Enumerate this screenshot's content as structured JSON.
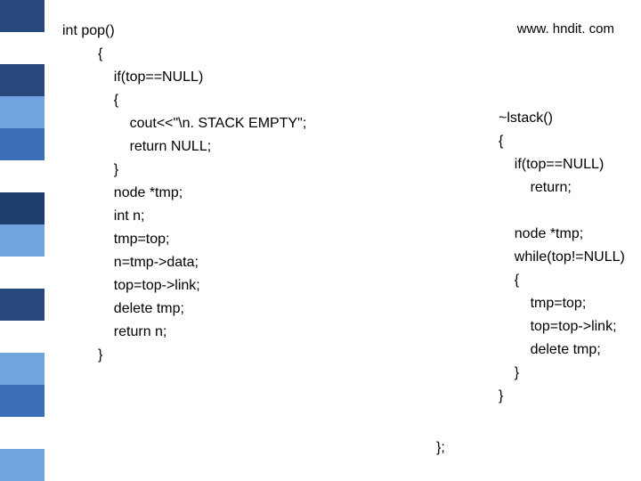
{
  "url": "www. hndit. com",
  "sidebar": {
    "colors": [
      "#28477a",
      "#ffffff",
      "#28477a",
      "#6fa4e0",
      "#3a6fb8",
      "#ffffff",
      "#1c3d6e",
      "#6fa4e0",
      "#ffffff",
      "#28477a",
      "#ffffff",
      "#6fa4e0",
      "#3a6fb8",
      "#ffffff",
      "#6fa4e0"
    ]
  },
  "code_left_lines": [
    "int pop()",
    "         {",
    "             if(top==NULL)",
    "             {",
    "                 cout<<\"\\n. STACK EMPTY\";",
    "                 return NULL;",
    "             }",
    "             node *tmp;",
    "             int n;",
    "             tmp=top;",
    "             n=tmp->data;",
    "             top=top->link;",
    "             delete tmp;",
    "             return n;",
    "         }"
  ],
  "code_right_lines": [
    "~lstack()",
    "{",
    "    if(top==NULL)",
    "        return;",
    "",
    "    node *tmp;",
    "    while(top!=NULL)",
    "    {",
    "        tmp=top;",
    "        top=top->link;",
    "        delete tmp;",
    "    }",
    "}"
  ],
  "closer": "};"
}
